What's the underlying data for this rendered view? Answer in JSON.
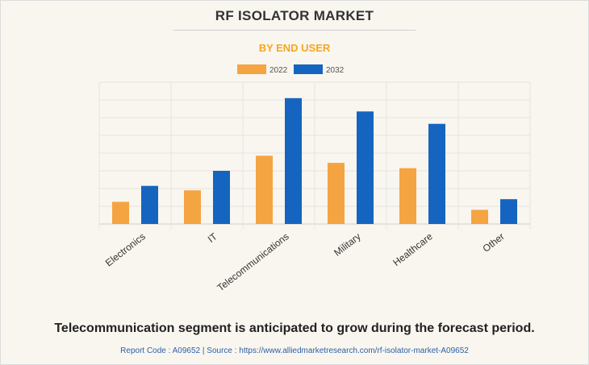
{
  "header": {
    "title": "RF ISOLATOR MARKET",
    "subtitle": "BY END USER"
  },
  "colors": {
    "series_2022": "#f5a442",
    "series_2032": "#1565c0"
  },
  "chart_data": {
    "type": "bar",
    "categories": [
      "Electronics",
      "IT",
      "Telecommunications",
      "Military",
      "Healthcare",
      "Other"
    ],
    "series": [
      {
        "name": "2022",
        "values": [
          12.5,
          19,
          38.5,
          34.5,
          31.5,
          8
        ]
      },
      {
        "name": "2032",
        "values": [
          21.5,
          30,
          71,
          63.5,
          56.5,
          14
        ]
      }
    ],
    "ylim": [
      0,
      80
    ],
    "grid": true,
    "legend": "top-center",
    "xlabel": "",
    "ylabel": ""
  },
  "caption": "Telecommunication segment is anticipated to grow during the forecast period.",
  "footer": "Report Code : A09652  |  Source : https://www.alliedmarketresearch.com/rf-isolator-market-A09652"
}
